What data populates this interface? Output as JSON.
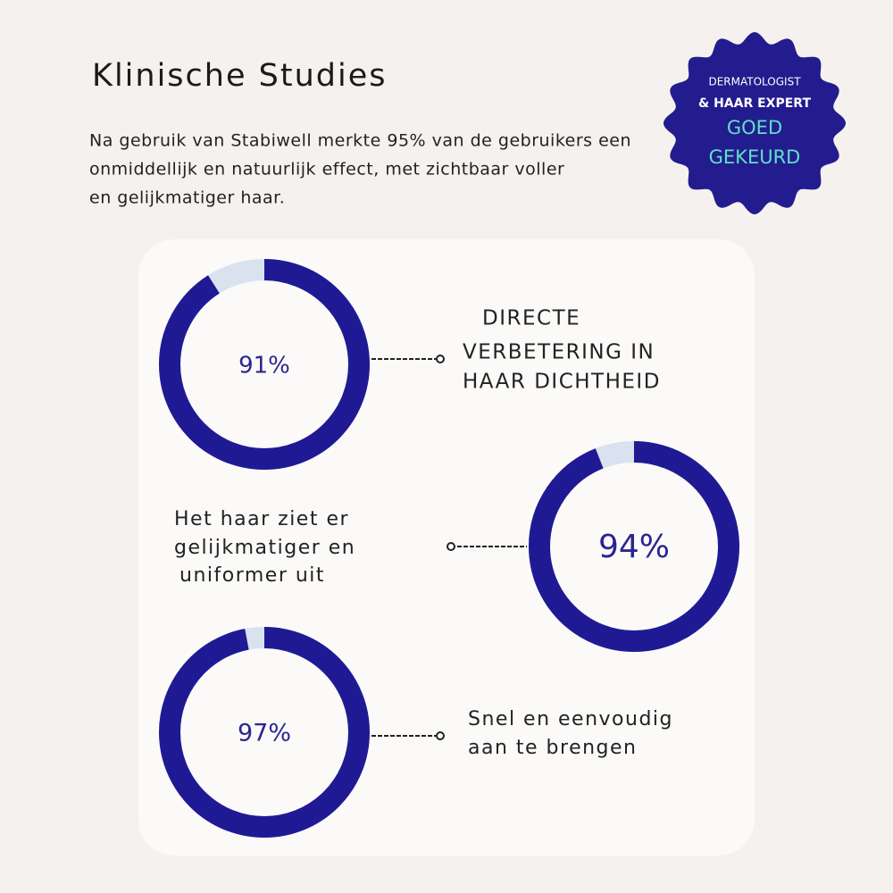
{
  "header": {
    "title": "Klinische Studies",
    "text": [
      "Na gebruik van Stabiwell merkte 95% van de gebruikers een",
      "onmiddellijk en natuurlijk effect, met zichtbaar voller",
      "en gelijkmatiger haar."
    ]
  },
  "badge": {
    "lines": [
      "DERMATOLOGIST",
      "& HAAR EXPERT",
      "GOED",
      "GEKEURD"
    ]
  },
  "chart_data": [
    {
      "type": "donut",
      "values": [
        91
      ],
      "value_labels": [
        "91%"
      ],
      "annotation": [
        "DIRECTE",
        "VERBETERING IN",
        "HAAR DICHTHEID"
      ],
      "ylim": [
        0,
        100
      ],
      "color": "#1f1a94",
      "track_color": "#d9e2ee"
    },
    {
      "type": "donut",
      "values": [
        94
      ],
      "value_labels": [
        "94%"
      ],
      "annotation": [
        "Het haar ziet er",
        "gelijkmatiger en",
        "uniformer uit"
      ],
      "ylim": [
        0,
        100
      ],
      "color": "#1f1a94",
      "track_color": "#d9e2ee"
    },
    {
      "type": "donut",
      "values": [
        97
      ],
      "value_labels": [
        "97%"
      ],
      "annotation": [
        "Snel en eenvoudig",
        "aan te brengen"
      ],
      "ylim": [
        0,
        100
      ],
      "color": "#1f1a94",
      "track_color": "#d9e2ee"
    }
  ]
}
